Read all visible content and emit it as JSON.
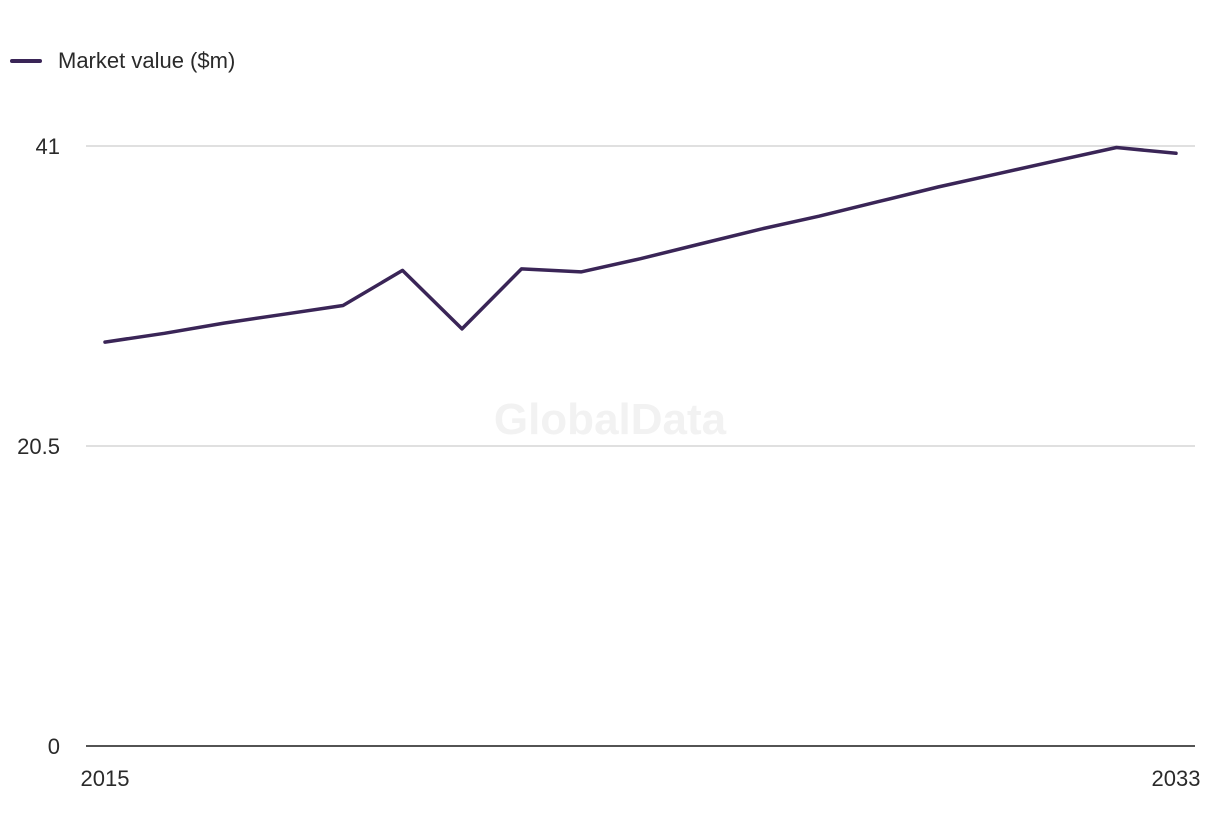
{
  "chart_data": {
    "type": "line",
    "legend": "top-left",
    "grid": true,
    "ylim": [
      0,
      41
    ],
    "yticks": [
      "41",
      "20.5",
      "0"
    ],
    "xticks": [
      "2015",
      "2033"
    ],
    "x": [
      2015,
      2016,
      2017,
      2018,
      2019,
      2020,
      2021,
      2022,
      2023,
      2024,
      2025,
      2026,
      2027,
      2028,
      2029,
      2030,
      2031,
      2032,
      2033
    ],
    "series": [
      {
        "name": "Market value ($m)",
        "color": "#3a2557",
        "values": [
          27.6,
          28.2,
          28.9,
          29.5,
          30.1,
          32.5,
          28.5,
          32.6,
          32.4,
          33.3,
          34.3,
          35.3,
          36.2,
          37.2,
          38.2,
          39.1,
          40.0,
          40.9,
          40.5
        ]
      }
    ],
    "watermark": "GlobalData"
  }
}
